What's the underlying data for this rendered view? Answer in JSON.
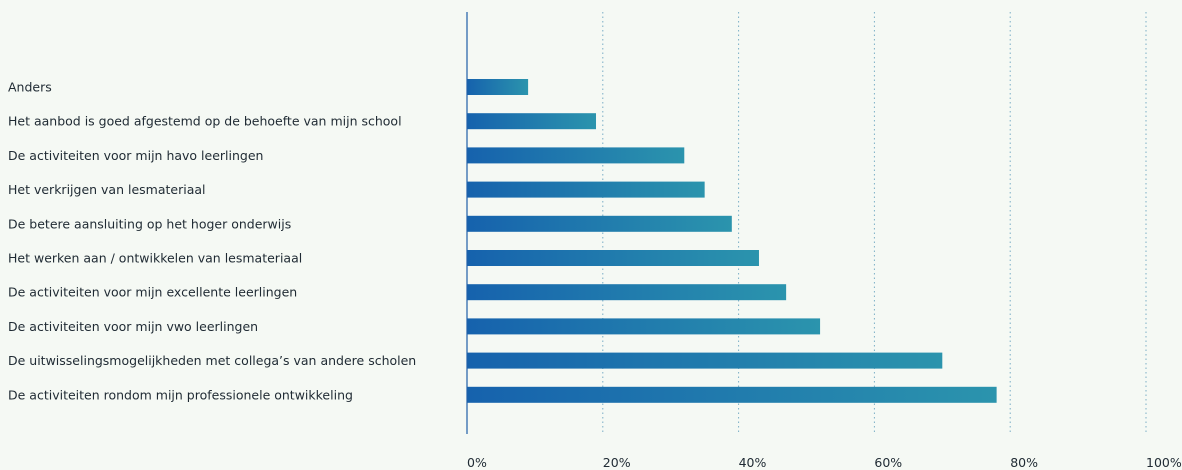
{
  "chart_data": {
    "type": "bar",
    "orientation": "horizontal",
    "categories": [
      "Anders",
      "Het aanbod is goed afgestemd op de behoefte van mijn school",
      "De activiteiten voor mijn havo leerlingen",
      "Het verkrijgen van lesmateriaal",
      "De betere aansluiting op het hoger onderwijs",
      "Het werken aan / ontwikkelen van lesmateriaal",
      "De activiteiten voor mijn excellente leerlingen",
      "De activiteiten voor mijn vwo leerlingen",
      "De uitwisselingsmogelijkheden met collega’s van andere scholen",
      "De activiteiten rondom mijn professionele ontwikkeling"
    ],
    "values": [
      9,
      19,
      32,
      35,
      39,
      43,
      47,
      52,
      70,
      78
    ],
    "xlim": [
      0,
      100
    ],
    "xticks": [
      0,
      20,
      40,
      60,
      80,
      100
    ],
    "xtick_labels": [
      "0%",
      "20%",
      "40%",
      "60%",
      "80%",
      "100%"
    ],
    "grid": "vertical-dotted",
    "bar_gradient": [
      "#1662ad",
      "#2b94ad"
    ],
    "axis_color": "#1f5fa8",
    "grid_color": "#7aaec6"
  }
}
